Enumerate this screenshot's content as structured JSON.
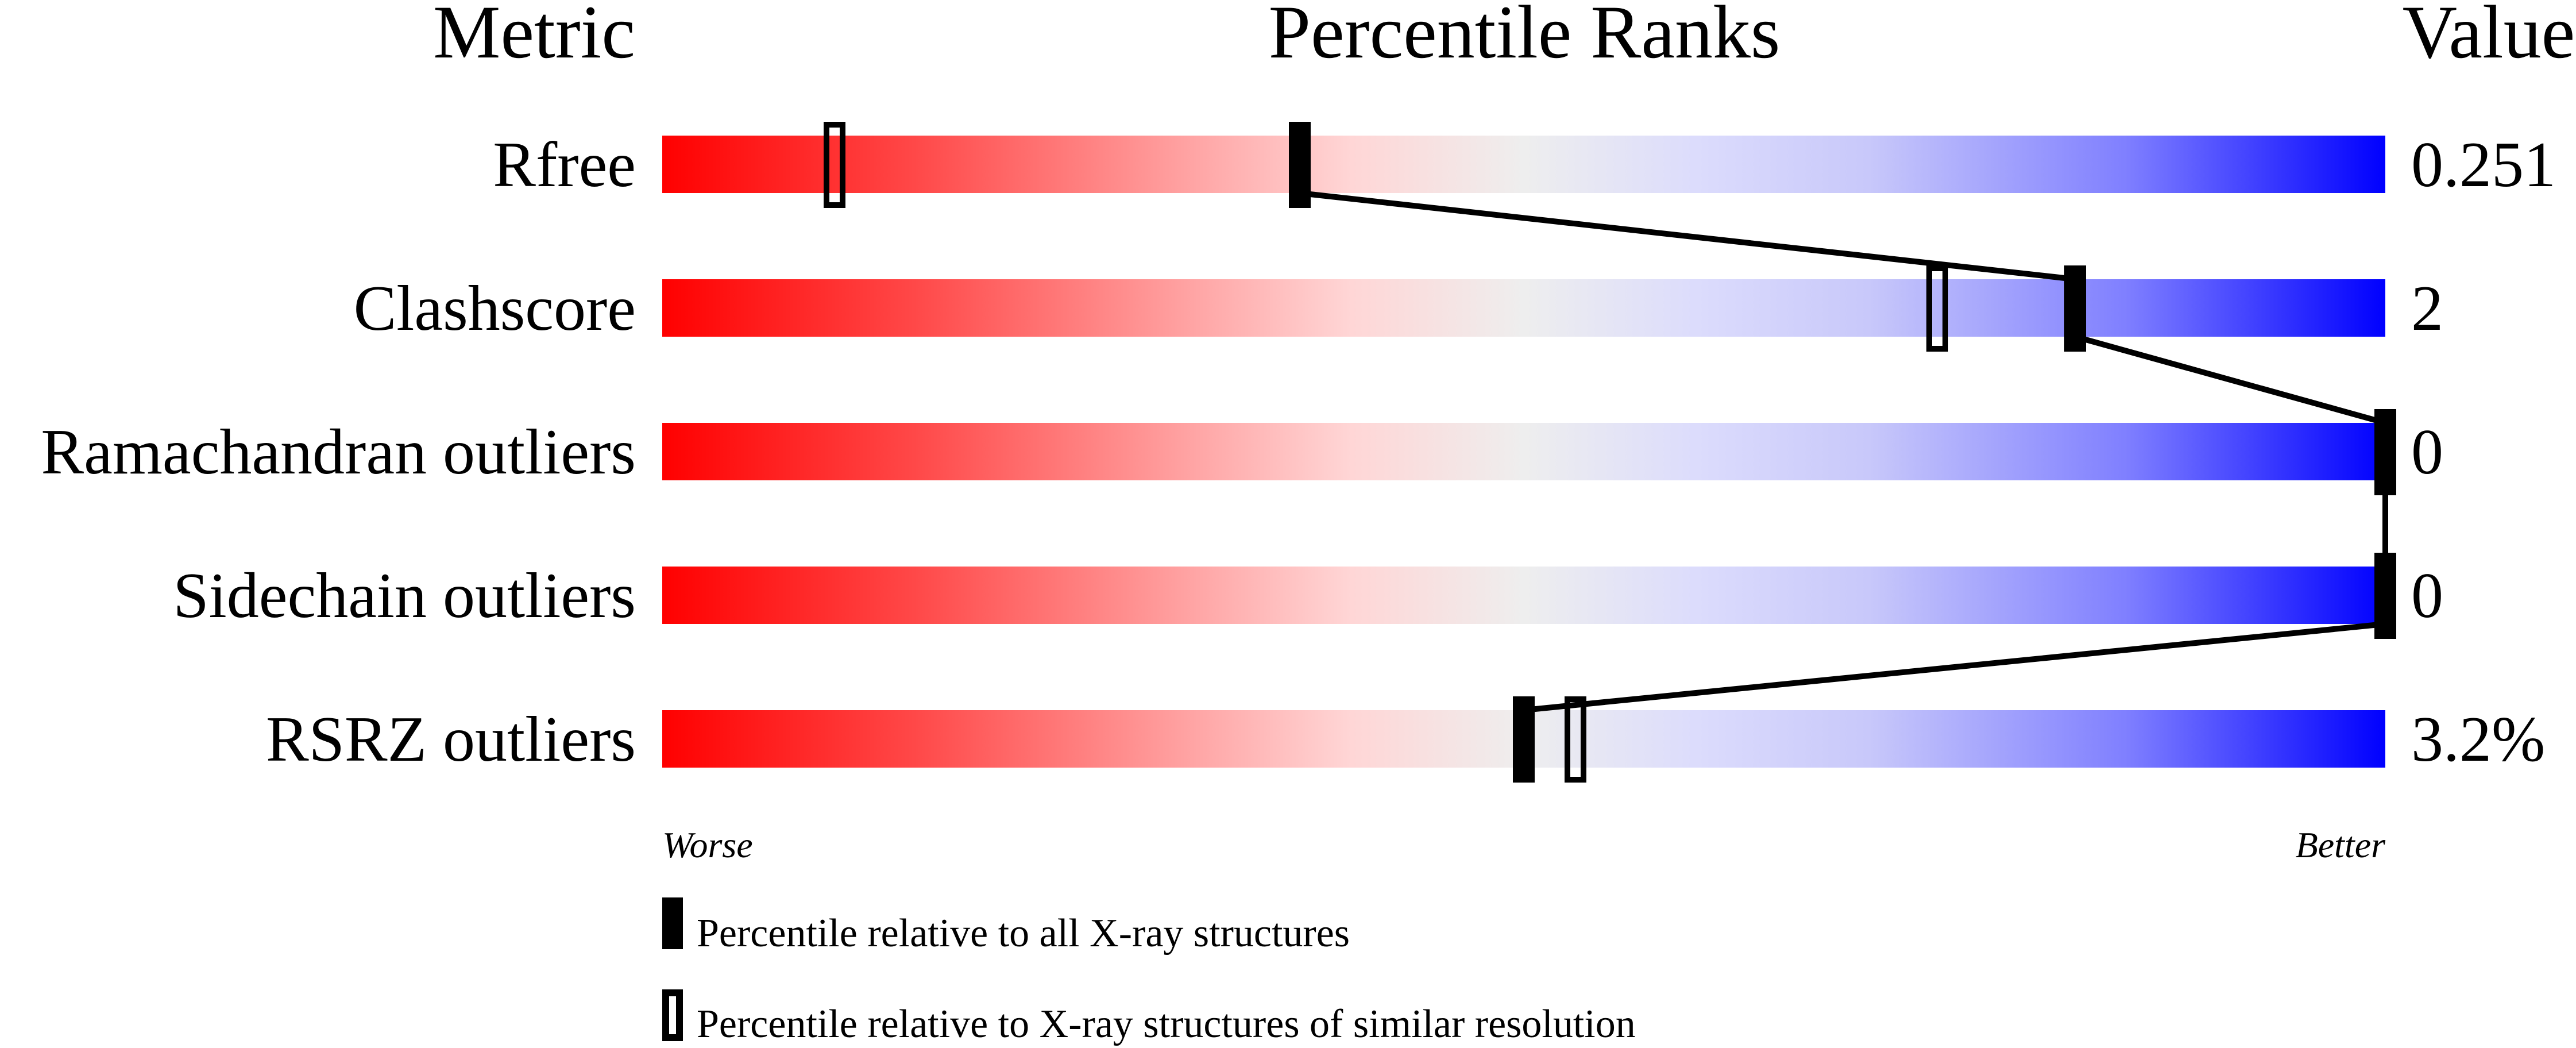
{
  "chart_data": {
    "type": "percentile-slider",
    "headers": {
      "metric": "Metric",
      "ranks": "Percentile Ranks",
      "value": "Value"
    },
    "xlim": [
      0,
      100
    ],
    "x_left_label": "Worse",
    "x_right_label": "Better",
    "gradient_colors": {
      "worse": "#ff0000",
      "middle": "#eeeeee",
      "better": "#0000ff"
    },
    "metrics": [
      {
        "name": "Rfree",
        "value": "0.251",
        "percentile_all": 37,
        "percentile_similar": 10
      },
      {
        "name": "Clashscore",
        "value": "2",
        "percentile_all": 82,
        "percentile_similar": 74
      },
      {
        "name": "Ramachandran outliers",
        "value": "0",
        "percentile_all": 100,
        "percentile_similar": null
      },
      {
        "name": "Sidechain outliers",
        "value": "0",
        "percentile_all": 100,
        "percentile_similar": null
      },
      {
        "name": "RSRZ outliers",
        "value": "3.2%",
        "percentile_all": 50,
        "percentile_similar": 53
      }
    ],
    "legend": [
      {
        "marker": "filled",
        "label": "Percentile relative to all X-ray structures"
      },
      {
        "marker": "open",
        "label": "Percentile relative to X-ray structures of similar resolution"
      }
    ]
  }
}
